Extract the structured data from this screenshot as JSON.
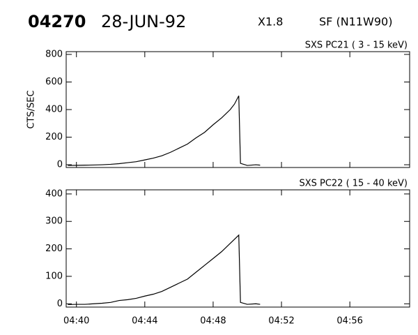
{
  "header": {
    "event": "04270",
    "date": "28-JUN-92",
    "class": "X1.8",
    "location": "SF (N11W90)"
  },
  "chart_data": [
    {
      "type": "line",
      "title": "SXS PC21  (  3 - 15 keV)",
      "y_label": "CTS/SEC",
      "x": [
        279.5,
        280,
        280.5,
        281,
        281.5,
        282,
        282.5,
        283,
        283.5,
        284,
        284.5,
        285,
        285.5,
        286,
        286.5,
        287,
        287.5,
        288,
        288.5,
        289,
        289.25,
        289.5,
        289.6,
        290,
        290.5,
        290.75
      ],
      "series": [
        {
          "color": "#000000",
          "values": [
            -5,
            -4,
            -3,
            -2,
            0,
            3,
            8,
            15,
            22,
            35,
            48,
            65,
            90,
            120,
            150,
            195,
            235,
            290,
            340,
            400,
            440,
            500,
            10,
            -5,
            0,
            -3
          ]
        }
      ],
      "xlim": [
        279.4,
        299.5
      ],
      "ylim": [
        -20,
        820
      ],
      "yticks": [
        0,
        200,
        400,
        600,
        800
      ]
    },
    {
      "type": "line",
      "title": "SXS PC22  ( 15 - 40 keV)",
      "x": [
        279.5,
        280,
        280.5,
        281,
        281.5,
        282,
        282.5,
        283,
        283.5,
        284,
        284.5,
        285,
        285.5,
        286,
        286.5,
        287,
        287.5,
        288,
        288.5,
        289,
        289.25,
        289.5,
        289.6,
        290,
        290.5,
        290.75
      ],
      "series": [
        {
          "color": "#000000",
          "values": [
            -3,
            -2,
            -2,
            0,
            2,
            5,
            12,
            15,
            20,
            28,
            35,
            45,
            60,
            75,
            90,
            115,
            140,
            165,
            190,
            220,
            235,
            250,
            5,
            -2,
            0,
            -2
          ]
        }
      ],
      "xlim": [
        279.4,
        299.5
      ],
      "ylim": [
        -12,
        415
      ],
      "yticks": [
        0,
        100,
        200,
        300,
        400
      ],
      "xticks": [
        {
          "value": 280,
          "label": "04:40"
        },
        {
          "value": 284,
          "label": "04:44"
        },
        {
          "value": 288,
          "label": "04:48"
        },
        {
          "value": 292,
          "label": "04:52"
        },
        {
          "value": 296,
          "label": "04:56"
        }
      ]
    }
  ]
}
